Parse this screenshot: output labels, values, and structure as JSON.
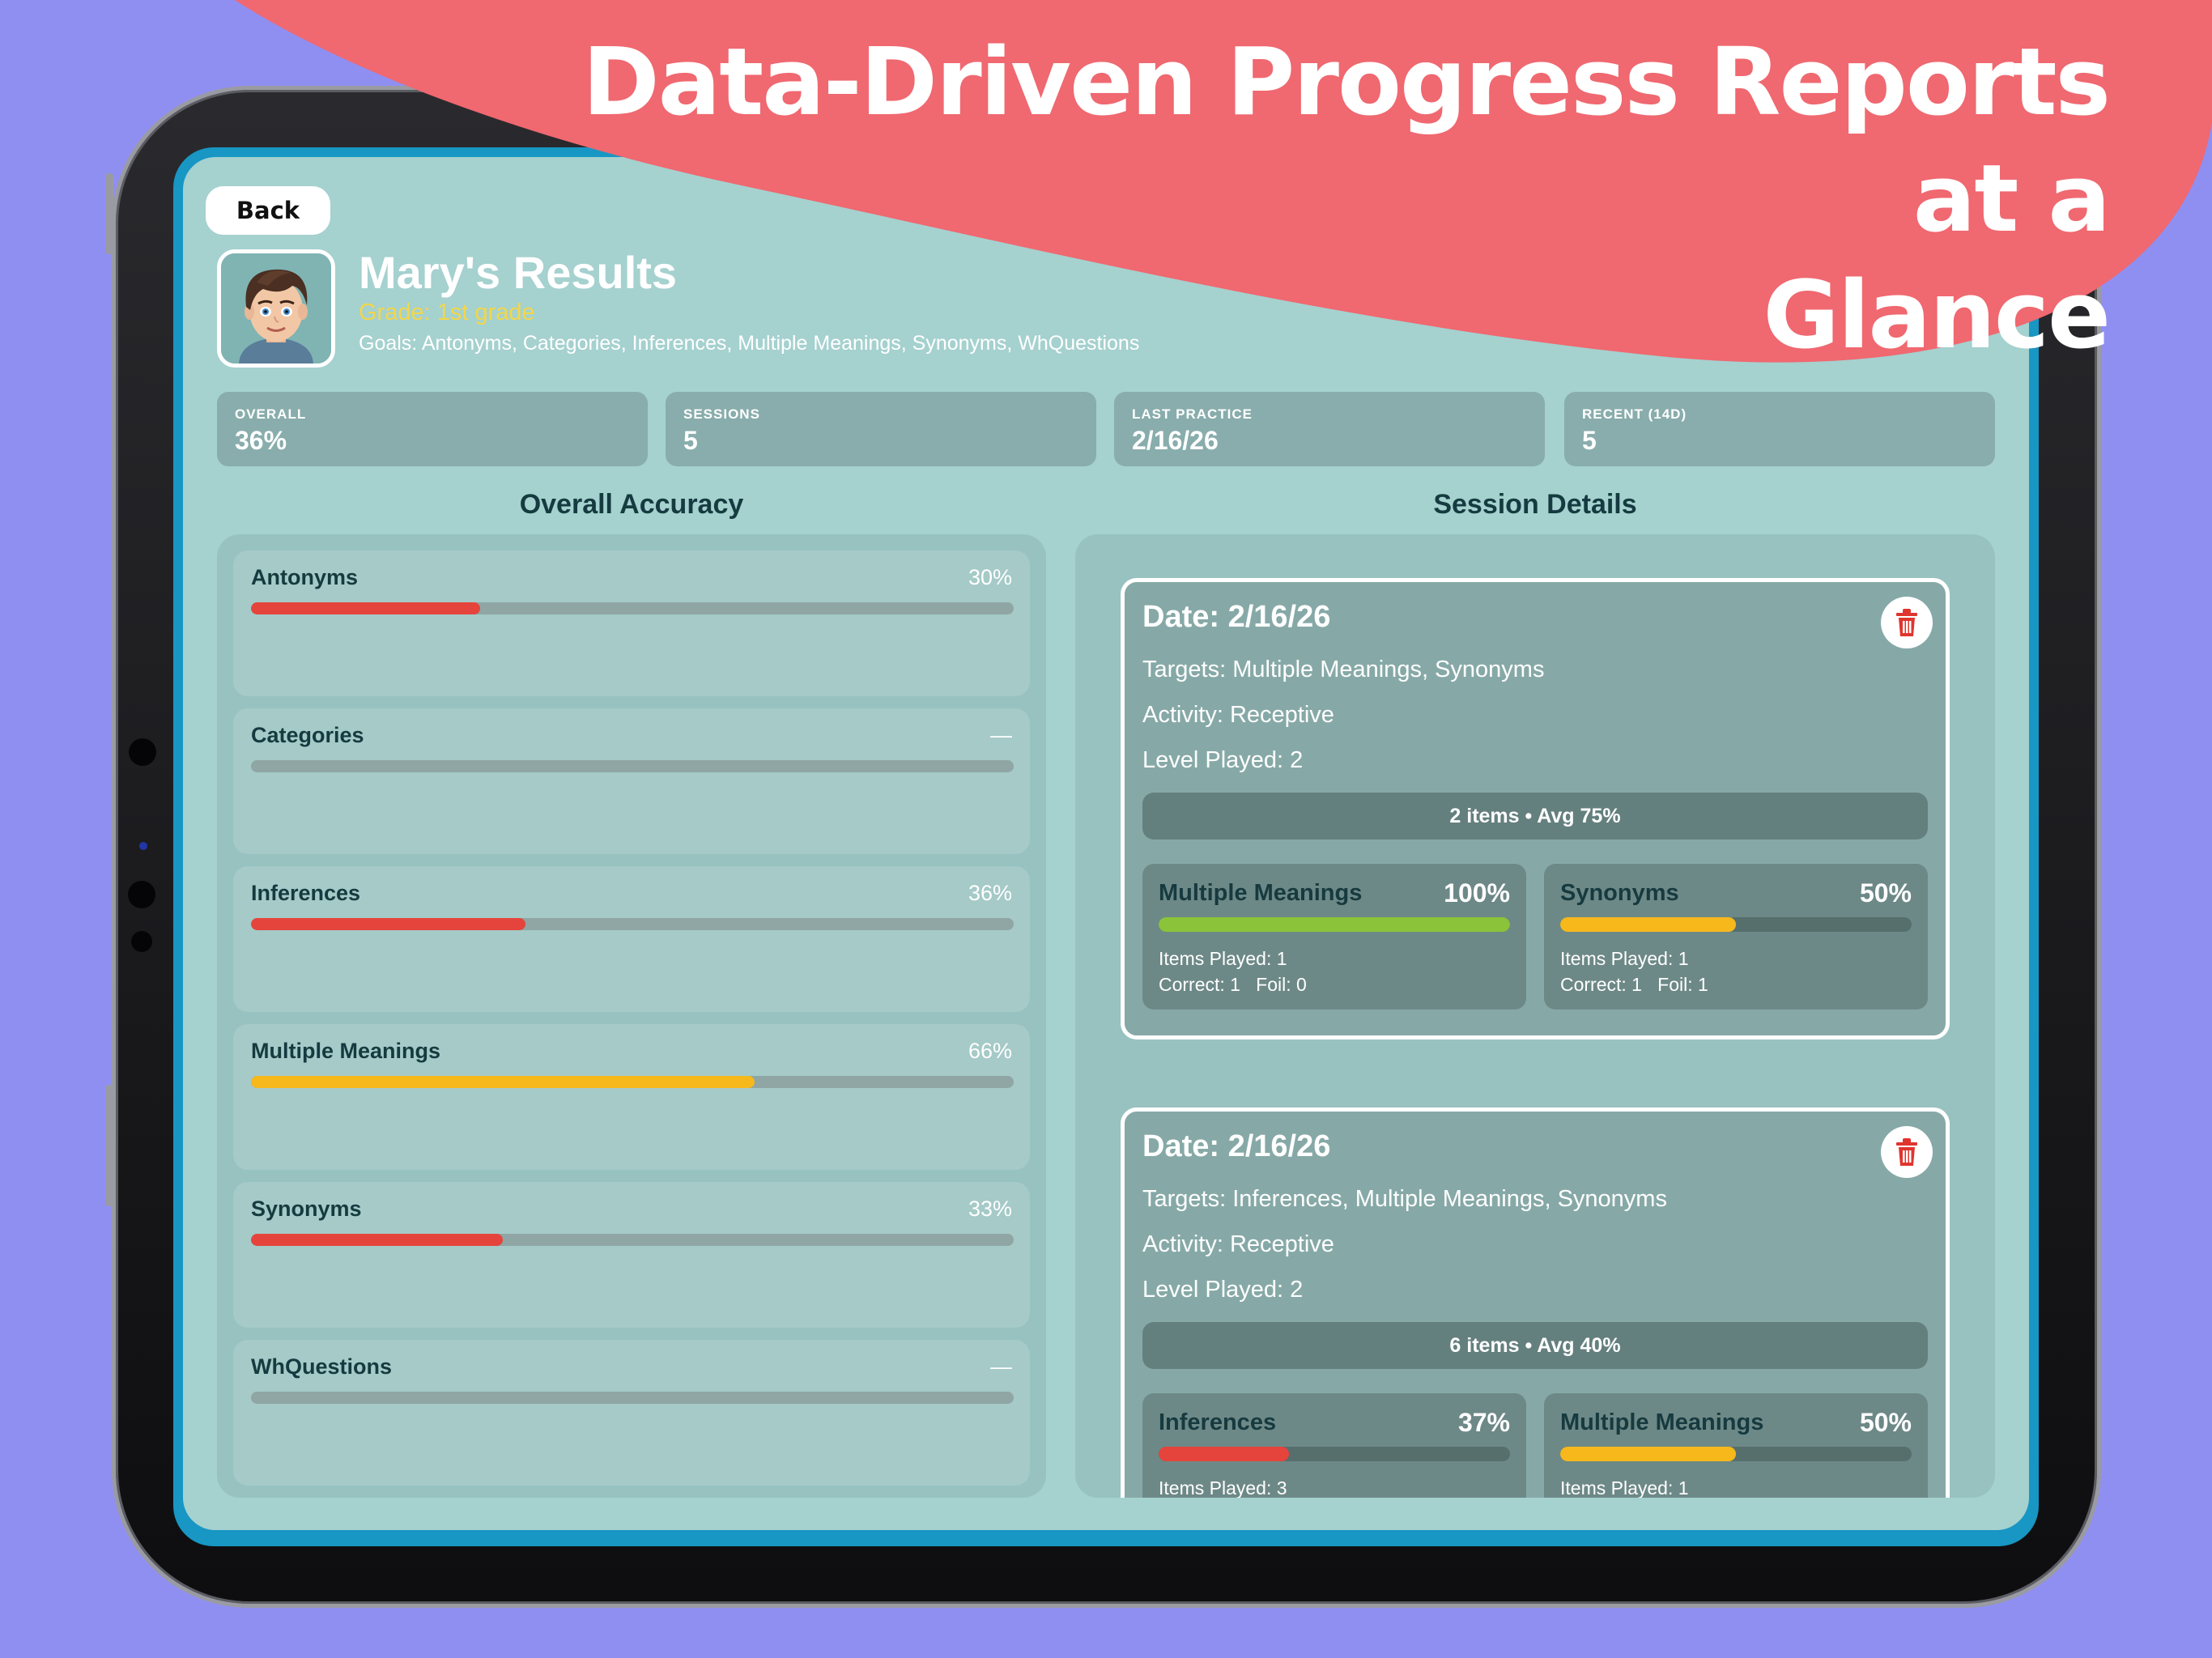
{
  "banner": {
    "line1": "Data-Driven Progress Reports at a",
    "line2": "Glance"
  },
  "colors": {
    "background": "#8f8ff2",
    "banner": "#f06870",
    "screen": "#a5d1cf",
    "low": "#e5443c",
    "mid": "#f7b81c",
    "high": "#8bc33a"
  },
  "toolbar": {
    "back_label": "Back"
  },
  "student": {
    "avatar_icon": "boy-avatar-icon",
    "title": "Mary's Results",
    "grade": "Grade: 1st grade",
    "goals": "Goals: Antonyms, Categories, Inferences, Multiple Meanings, Synonyms, WhQuestions"
  },
  "stats": [
    {
      "label": "OVERALL",
      "value": "36%"
    },
    {
      "label": "SESSIONS",
      "value": "5"
    },
    {
      "label": "LAST PRACTICE",
      "value": "2/16/26"
    },
    {
      "label": "RECENT (14D)",
      "value": "5"
    }
  ],
  "accuracy": {
    "title": "Overall Accuracy",
    "items": [
      {
        "name": "Antonyms",
        "pct_label": "30%",
        "value": 0.3,
        "color": "#e5443c"
      },
      {
        "name": "Categories",
        "pct_label": "—",
        "value": 0,
        "color": "#e5443c"
      },
      {
        "name": "Inferences",
        "pct_label": "36%",
        "value": 0.36,
        "color": "#e5443c"
      },
      {
        "name": "Multiple Meanings",
        "pct_label": "66%",
        "value": 0.66,
        "color": "#f7b81c"
      },
      {
        "name": "Synonyms",
        "pct_label": "33%",
        "value": 0.33,
        "color": "#e5443c"
      },
      {
        "name": "WhQuestions",
        "pct_label": "—",
        "value": 0,
        "color": "#e5443c"
      }
    ]
  },
  "sessions": {
    "title": "Session Details",
    "items": [
      {
        "date": "Date: 2/16/26",
        "targets": "Targets: Multiple Meanings, Synonyms",
        "activity": "Activity: Receptive",
        "level": "Level Played: 2",
        "summary": "2 items • Avg 75%",
        "targets_detail": [
          {
            "name": "Multiple Meanings",
            "pct": "100%",
            "value": 1.0,
            "color": "#8bc33a",
            "items": "Items Played: 1",
            "correct": "Correct: 1   Foil: 0"
          },
          {
            "name": "Synonyms",
            "pct": "50%",
            "value": 0.5,
            "color": "#f7b81c",
            "items": "Items Played: 1",
            "correct": "Correct: 1   Foil: 1"
          }
        ]
      },
      {
        "date": "Date: 2/16/26",
        "targets": "Targets: Inferences, Multiple Meanings, Synonyms",
        "activity": "Activity: Receptive",
        "level": "Level Played: 2",
        "summary": "6 items • Avg 40%",
        "targets_detail": [
          {
            "name": "Inferences",
            "pct": "37%",
            "value": 0.37,
            "color": "#e5443c",
            "items": "Items Played: 3"
          },
          {
            "name": "Multiple Meanings",
            "pct": "50%",
            "value": 0.5,
            "color": "#f7b81c",
            "items": "Items Played: 1"
          }
        ]
      }
    ]
  }
}
